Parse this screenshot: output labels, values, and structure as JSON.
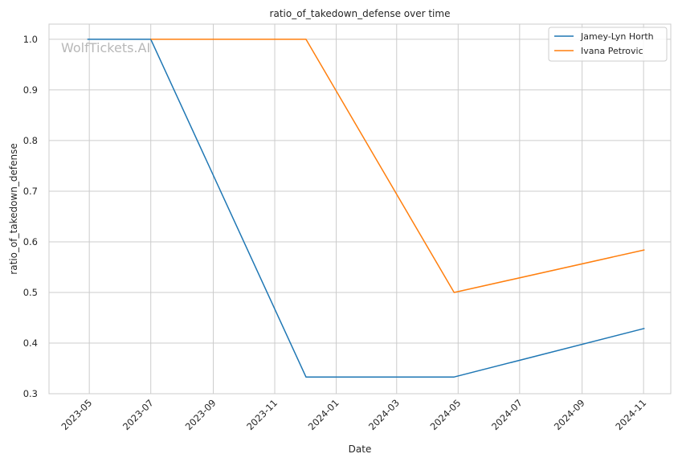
{
  "watermark": "WolfTickets.AI",
  "chart_data": {
    "type": "line",
    "title": "ratio_of_takedown_defense over time",
    "xlabel": "Date",
    "ylabel": "ratio_of_takedown_defense",
    "xlim": [
      "2023-03-22",
      "2024-11-28"
    ],
    "ylim": [
      0.3,
      1.03
    ],
    "xticks": [
      "2023-05",
      "2023-07",
      "2023-09",
      "2023-11",
      "2024-01",
      "2024-03",
      "2024-05",
      "2024-07",
      "2024-09",
      "2024-11"
    ],
    "xtick_dates": [
      "2023-05-01",
      "2023-07-01",
      "2023-09-01",
      "2023-11-01",
      "2024-01-01",
      "2024-03-01",
      "2024-05-01",
      "2024-07-01",
      "2024-09-01",
      "2024-11-01"
    ],
    "yticks": [
      "0.3",
      "0.4",
      "0.5",
      "0.6",
      "0.7",
      "0.8",
      "0.9",
      "1.0"
    ],
    "grid": true,
    "legend_position": "top-right",
    "series": [
      {
        "name": "Jamey-Lyn Horth",
        "color": "#1f77b4",
        "x": [
          "2023-04-29",
          "2023-07-01",
          "2023-12-02",
          "2024-04-27",
          "2024-11-02"
        ],
        "y": [
          1.0,
          1.0,
          0.333,
          0.333,
          0.429
        ]
      },
      {
        "name": "Ivana Petrovic",
        "color": "#ff7f0e",
        "x": [
          "2023-07-01",
          "2023-12-02",
          "2024-04-27",
          "2024-11-02"
        ],
        "y": [
          1.0,
          1.0,
          0.5,
          0.584
        ]
      }
    ]
  }
}
